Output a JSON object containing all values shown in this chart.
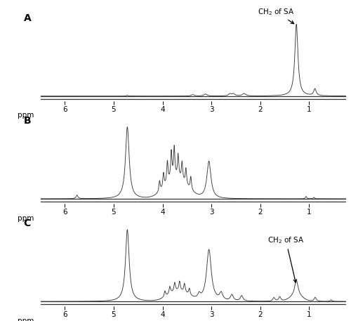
{
  "fig_width": 5.0,
  "fig_height": 4.57,
  "dpi": 100,
  "bg_color": "#ffffff",
  "line_color": "#3a3a3a",
  "panel_labels": [
    "A",
    "B",
    "C"
  ],
  "x_label": "ppm",
  "xticks": [
    6.0,
    5.0,
    4.0,
    3.0,
    2.0,
    1.0
  ],
  "xlim": [
    6.5,
    0.25
  ],
  "panel_label_fontsize": 10,
  "tick_fontsize": 7.5,
  "annot_fontsize": 7.5
}
